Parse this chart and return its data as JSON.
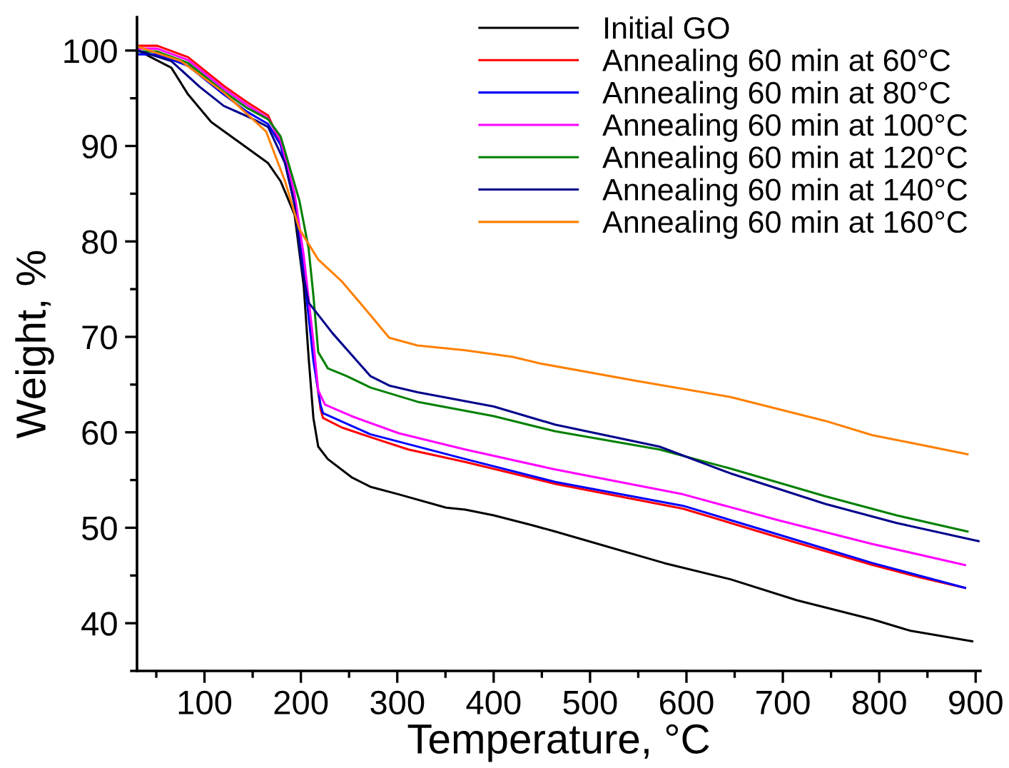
{
  "chart_data": {
    "type": "line",
    "xlabel": "Temperature, °C",
    "ylabel": "Weight, %",
    "xlim": [
      30,
      905
    ],
    "ylim": [
      35,
      103.5
    ],
    "xticks": [
      100,
      200,
      300,
      400,
      500,
      600,
      700,
      800,
      900
    ],
    "yticks": [
      40,
      50,
      60,
      70,
      80,
      90,
      100
    ],
    "grid": false,
    "legend": "top right",
    "marker": "none",
    "line_style": "solid",
    "series": [
      {
        "name": "Initial GO",
        "color": "#000000",
        "x": [
          31,
          65.6,
          83,
          107,
          134.5,
          166,
          179,
          193.5,
          203,
          208,
          213,
          218,
          227.9,
          252.5,
          272,
          301.6,
          350.7,
          370.5,
          400,
          439,
          464,
          577,
          645.7,
          714.6,
          793,
          832.6,
          896.5
        ],
        "values": [
          100,
          98.2,
          95.4,
          92.5,
          90.5,
          88.2,
          86.3,
          82.8,
          75.3,
          67.9,
          61.5,
          58.5,
          57.2,
          55.3,
          54.3,
          53.5,
          52.1,
          51.9,
          51.3,
          50.3,
          49.6,
          46.3,
          44.6,
          42.4,
          40.4,
          39.2,
          38.1
        ]
      },
      {
        "name": "Annealing 60 min at 60°C",
        "color": "#ff0000",
        "x": [
          31,
          51,
          83,
          120,
          144,
          166,
          179,
          193.5,
          203,
          213,
          220.5,
          223,
          242.6,
          272,
          311.5,
          370.5,
          419.6,
          464,
          596.6,
          695,
          793,
          842.5,
          889
        ],
        "values": [
          100.5,
          100.5,
          99.3,
          96.3,
          94.6,
          93.2,
          90.2,
          84.3,
          77.3,
          67.9,
          62.4,
          61.5,
          60.5,
          59.5,
          58.2,
          56.9,
          55.7,
          54.6,
          52.0,
          49.0,
          46.1,
          44.8,
          43.7
        ]
      },
      {
        "name": "Annealing 60 min at 80°C",
        "color": "#0000ff",
        "x": [
          31,
          51,
          83,
          120,
          144,
          166,
          179,
          193.5,
          203,
          213,
          220.5,
          223,
          272,
          370.5,
          464,
          596.6,
          695,
          793,
          889
        ],
        "values": [
          99.6,
          99.6,
          98.4,
          95.4,
          93.6,
          92.3,
          90.1,
          84.0,
          76.8,
          67.5,
          62.8,
          62.0,
          59.8,
          57.2,
          54.8,
          52.3,
          49.3,
          46.3,
          43.7
        ]
      },
      {
        "name": "Annealing 60 min at 100°C",
        "color": "#ff00ff",
        "x": [
          31,
          51,
          83,
          120,
          144,
          166,
          179,
          193.5,
          203,
          213,
          218,
          225,
          252.5,
          301.6,
          370.5,
          464,
          596.6,
          695,
          793,
          889
        ],
        "values": [
          100.2,
          100.2,
          99.0,
          96.0,
          94.3,
          92.9,
          90.6,
          85.0,
          78.5,
          69.5,
          64.4,
          62.9,
          61.7,
          59.9,
          58.2,
          56.1,
          53.5,
          50.8,
          48.3,
          46.1
        ]
      },
      {
        "name": "Annealing 60 min at 120°C",
        "color": "#008000",
        "x": [
          31,
          51,
          83,
          120,
          144,
          166,
          179,
          198.4,
          208,
          213,
          218,
          228,
          247.5,
          272,
          321,
          400,
          464,
          572,
          645.7,
          744,
          818,
          891.6
        ],
        "values": [
          99.9,
          99.9,
          98.7,
          95.7,
          94.0,
          92.8,
          91.0,
          84.3,
          79.3,
          74.3,
          68.4,
          66.7,
          65.9,
          64.7,
          63.2,
          61.7,
          60.1,
          58.2,
          56.2,
          53.3,
          51.3,
          49.6
        ]
      },
      {
        "name": "Annealing 60 min at 140°C",
        "color": "#00008b",
        "x": [
          31,
          65.6,
          95,
          120,
          149,
          166,
          183.6,
          193.5,
          201,
          208,
          232.7,
          272,
          291.7,
          321,
          400,
          464,
          572,
          645.7,
          744,
          818,
          903
        ],
        "values": [
          100,
          98.9,
          96.2,
          94.2,
          92.9,
          92.0,
          88.2,
          83.8,
          77.3,
          73.6,
          70.4,
          65.9,
          64.9,
          64.2,
          62.7,
          60.8,
          58.5,
          55.7,
          52.5,
          50.5,
          48.6
        ]
      },
      {
        "name": "Annealing 60 min at 160°C",
        "color": "#ff8000",
        "x": [
          31,
          75.5,
          120,
          164,
          183.6,
          198.4,
          218,
          242.6,
          267,
          291.7,
          321,
          370.5,
          419.6,
          449,
          547.5,
          645.7,
          744,
          793,
          842.5,
          891.6
        ],
        "values": [
          100.4,
          98.9,
          95.6,
          91.5,
          86.3,
          81.3,
          78.1,
          75.8,
          72.9,
          69.9,
          69.1,
          68.6,
          67.9,
          67.2,
          65.4,
          63.7,
          61.2,
          59.7,
          58.7,
          57.7
        ]
      }
    ]
  }
}
